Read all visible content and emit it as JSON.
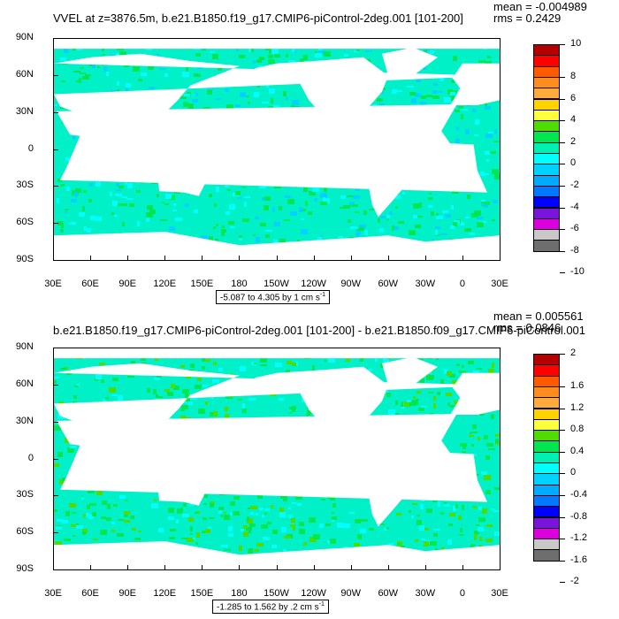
{
  "chart_data": [
    {
      "type": "heatmap",
      "title": "VVEL at z=3876.5m, b.e21.B1850.f19_g17.CMIP6-piControl-2deg.001 [101-200]",
      "stat_mean": "mean = -0.004989",
      "stat_rms": "rms = 0.2429",
      "range_label": "-5.087 to 4.305 by 1 cm s",
      "range_unit_exp": "-1",
      "ylabels": [
        "90N",
        "60N",
        "30N",
        "0",
        "30S",
        "60S",
        "90S"
      ],
      "xlabels": [
        "30E",
        "60E",
        "90E",
        "120E",
        "150E",
        "180",
        "150W",
        "120W",
        "90W",
        "60W",
        "30W",
        "0",
        "30E"
      ],
      "colorbar_labels": [
        "10",
        "8",
        "6",
        "4",
        "2",
        "0",
        "-2",
        "-4",
        "-6",
        "-8",
        "-10"
      ]
    },
    {
      "type": "heatmap",
      "title": "b.e21.B1850.f19_g17.CMIP6-piControl-2deg.001 [101-200] - b.e21.B1850.f09_g17.CMIP6-piControl.001",
      "stat_mean": "mean = 0.005561",
      "stat_rms": "rms = 0.0846",
      "range_label": "-1.285 to 1.562 by .2 cm s",
      "range_unit_exp": "-1",
      "ylabels": [
        "90N",
        "60N",
        "30N",
        "0",
        "30S",
        "60S",
        "90S"
      ],
      "xlabels": [
        "30E",
        "60E",
        "90E",
        "120E",
        "150E",
        "180",
        "150W",
        "120W",
        "90W",
        "60W",
        "30W",
        "0",
        "30E"
      ],
      "colorbar_labels": [
        "2",
        "1.6",
        "1.2",
        "0.8",
        "0.4",
        "0",
        "-0.4",
        "-0.8",
        "-1.2",
        "-1.6",
        "-2"
      ]
    }
  ],
  "colorbar_colors": [
    "#b40000",
    "#ff0000",
    "#ff5a00",
    "#ff8c1e",
    "#ffaa3c",
    "#ffd200",
    "#ffff3c",
    "#50dc00",
    "#00e650",
    "#00f0b4",
    "#00ffff",
    "#00d2ff",
    "#00aaff",
    "#0078ff",
    "#0000ff",
    "#7814dc",
    "#dc00dc",
    "#c8c8c8",
    "#6e6e6e"
  ],
  "map_colors": {
    "land_fill": "#ffffff",
    "ocean_main": "#00f0c8",
    "ocean_alt": "#00e650",
    "ocean_low": "#00ffff"
  }
}
